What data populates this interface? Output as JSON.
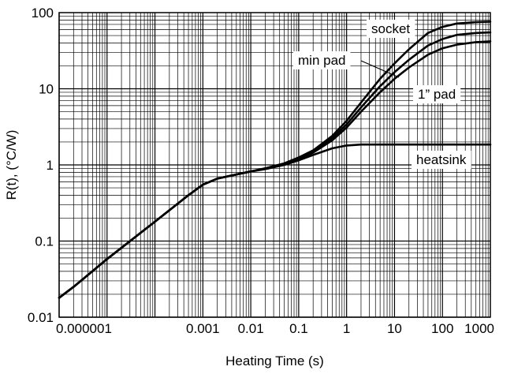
{
  "chart_data": {
    "type": "line",
    "xlabel": "Heating Time (s)",
    "ylabel": "R(t), (°C/W)",
    "xscale": "log",
    "yscale": "log",
    "xlim": [
      1e-06,
      1000
    ],
    "ylim": [
      0.01,
      100
    ],
    "grid": true,
    "x_tick_labels": [
      {
        "value": 1e-06,
        "label": "0.000001"
      },
      {
        "value": 0.001,
        "label": "0.001"
      },
      {
        "value": 0.01,
        "label": "0.01"
      },
      {
        "value": 0.1,
        "label": "0.1"
      },
      {
        "value": 1,
        "label": "1"
      },
      {
        "value": 10,
        "label": "10"
      },
      {
        "value": 100,
        "label": "100"
      },
      {
        "value": 1000,
        "label": "1000"
      }
    ],
    "y_tick_labels": [
      {
        "value": 0.01,
        "label": "0.01"
      },
      {
        "value": 0.1,
        "label": "0.1"
      },
      {
        "value": 1,
        "label": "1"
      },
      {
        "value": 10,
        "label": "10"
      },
      {
        "value": 100,
        "label": "100"
      }
    ],
    "series": [
      {
        "name": "socket",
        "x": [
          1e-06,
          2e-06,
          1e-05,
          0.0001,
          0.0005,
          0.001,
          0.002,
          0.005,
          0.01,
          0.02,
          0.05,
          0.1,
          0.2,
          0.5,
          1,
          2,
          5,
          10,
          20,
          50,
          100,
          200,
          500,
          1000
        ],
        "y": [
          0.018,
          0.025,
          0.058,
          0.18,
          0.4,
          0.55,
          0.66,
          0.75,
          0.82,
          0.9,
          1.05,
          1.25,
          1.55,
          2.4,
          3.8,
          6.6,
          13.5,
          21.5,
          33,
          54,
          65,
          72,
          75,
          76
        ]
      },
      {
        "name": "min pad",
        "x": [
          1e-06,
          2e-06,
          1e-05,
          0.0001,
          0.0005,
          0.001,
          0.002,
          0.005,
          0.01,
          0.02,
          0.05,
          0.1,
          0.2,
          0.5,
          1,
          2,
          5,
          10,
          20,
          50,
          100,
          200,
          500,
          1000
        ],
        "y": [
          0.018,
          0.025,
          0.058,
          0.18,
          0.4,
          0.55,
          0.66,
          0.75,
          0.82,
          0.9,
          1.04,
          1.22,
          1.5,
          2.25,
          3.4,
          5.7,
          10.8,
          16.5,
          24,
          37,
          45,
          51,
          54,
          55
        ]
      },
      {
        "name": "1” pad",
        "x": [
          1e-06,
          2e-06,
          1e-05,
          0.0001,
          0.0005,
          0.001,
          0.002,
          0.005,
          0.01,
          0.02,
          0.05,
          0.1,
          0.2,
          0.5,
          1,
          2,
          5,
          10,
          20,
          50,
          100,
          200,
          500,
          1000
        ],
        "y": [
          0.018,
          0.025,
          0.058,
          0.18,
          0.4,
          0.55,
          0.66,
          0.75,
          0.82,
          0.9,
          1.03,
          1.2,
          1.45,
          2.1,
          3.1,
          5.0,
          9.0,
          13.5,
          19,
          28,
          34,
          38,
          41,
          42
        ]
      },
      {
        "name": "heatsink",
        "x": [
          1e-06,
          2e-06,
          1e-05,
          0.0001,
          0.0005,
          0.001,
          0.002,
          0.005,
          0.01,
          0.02,
          0.05,
          0.1,
          0.2,
          0.5,
          1,
          2,
          5,
          10,
          100,
          1000
        ],
        "y": [
          0.018,
          0.025,
          0.058,
          0.18,
          0.4,
          0.55,
          0.66,
          0.75,
          0.82,
          0.88,
          1.0,
          1.15,
          1.35,
          1.65,
          1.8,
          1.85,
          1.85,
          1.85,
          1.85,
          1.85
        ]
      }
    ]
  }
}
